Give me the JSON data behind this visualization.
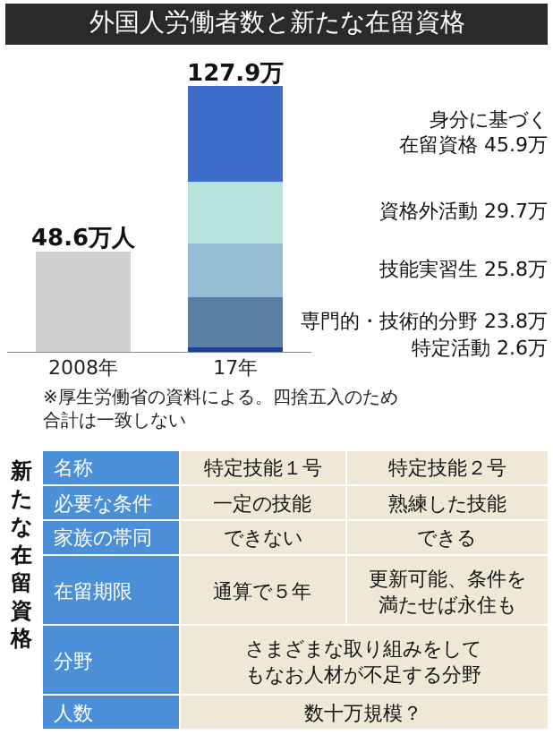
{
  "chart_data": [
    {
      "type": "bar",
      "title": "外国人労働者数と新たな在留資格",
      "categories": [
        "2008年",
        "17年"
      ],
      "stacked": true,
      "series": [
        {
          "color": "#cfcfcf",
          "values": [
            48.6,
            null
          ],
          "value_labels": [
            "48.6万人",
            null
          ]
        },
        {
          "name": "特定活動",
          "color": "#1f3f8f",
          "values": [
            null,
            2.6
          ],
          "value_labels": [
            null,
            "2.6万"
          ]
        },
        {
          "name": "専門的・技術的分野",
          "color": "#5a7fa3",
          "values": [
            null,
            23.8
          ],
          "value_labels": [
            null,
            "23.8万"
          ]
        },
        {
          "name": "技能実習生",
          "color": "#97bcd3",
          "values": [
            null,
            25.8
          ],
          "value_labels": [
            null,
            "25.8万"
          ]
        },
        {
          "name": "資格外活動",
          "color": "#b8e2dc",
          "values": [
            null,
            29.7
          ],
          "value_labels": [
            null,
            "29.7万"
          ]
        },
        {
          "name": "身分に基づく在留資格",
          "color": "#3d6bc8",
          "values": [
            null,
            45.9
          ],
          "value_labels": [
            null,
            "45.9万"
          ]
        }
      ],
      "totals": [
        null,
        "127.9万"
      ],
      "annotations": [
        "※厚生労働省の資料による。四捨五入のため合計は一致しない"
      ]
    },
    {
      "type": "other",
      "title": "新たな在留資格",
      "y_categories": [
        "名称",
        "必要な条件",
        "家族の帯同",
        "在留期限",
        "分野",
        "人数"
      ],
      "cell_labels": [
        [
          "特定技能１号",
          "特定技能２号"
        ],
        [
          "一定の技能",
          "熟練した技能"
        ],
        [
          "できない",
          "できる"
        ],
        [
          "通算で５年",
          "更新可能、条件を満たせば永住も"
        ],
        [
          "さまざまな取り組みをしてもなお人材が不足する分野",
          null
        ],
        [
          "数十万規模？",
          null
        ]
      ]
    }
  ]
}
